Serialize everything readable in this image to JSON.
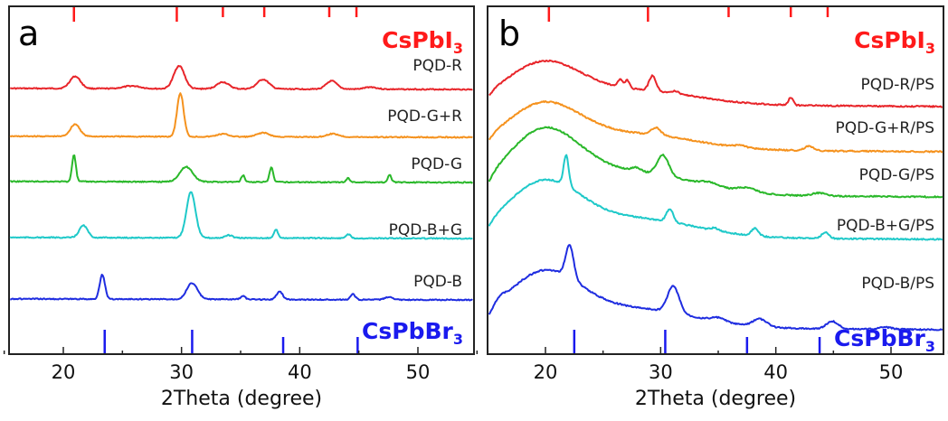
{
  "chart_data": [
    {
      "type": "line",
      "panel_label": "a",
      "xlabel": "2Theta (degree)",
      "ylabel": "",
      "xlim": [
        15,
        55
      ],
      "xticks": [
        20,
        30,
        40,
        50
      ],
      "y_ticks_shown": false,
      "grid": false,
      "reference_top": {
        "name": "CsPbI",
        "sub": "3",
        "color": "#ff1a1a",
        "peaks": [
          20.9,
          29.6,
          33.5,
          37.0,
          42.5,
          44.8
        ]
      },
      "reference_bottom": {
        "name": "CsPbBr",
        "sub": "3",
        "color": "#1a1aee",
        "peaks": [
          23.5,
          30.9,
          38.6,
          44.9
        ]
      },
      "series": [
        {
          "name": "PQD-R",
          "color": "#e8252a",
          "peaks": [
            [
              21.0,
              0.45,
              0.45
            ],
            [
              25.8,
              0.1,
              0.7
            ],
            [
              29.8,
              0.85,
              0.45
            ],
            [
              33.5,
              0.25,
              0.5
            ],
            [
              36.9,
              0.35,
              0.5
            ],
            [
              42.7,
              0.3,
              0.45
            ],
            [
              46.0,
              0.08,
              0.5
            ]
          ]
        },
        {
          "name": "PQD-G+R",
          "color": "#f5921e",
          "peaks": [
            [
              21.0,
              0.45,
              0.4
            ],
            [
              29.9,
              1.6,
              0.28
            ],
            [
              33.5,
              0.1,
              0.5
            ],
            [
              36.9,
              0.15,
              0.5
            ],
            [
              42.8,
              0.12,
              0.5
            ]
          ]
        },
        {
          "name": "PQD-G",
          "color": "#2ab82a",
          "peaks": [
            [
              20.9,
              1.0,
              0.16
            ],
            [
              30.4,
              0.55,
              0.55
            ],
            [
              35.2,
              0.25,
              0.15
            ],
            [
              37.6,
              0.55,
              0.15
            ],
            [
              44.1,
              0.15,
              0.15
            ],
            [
              47.6,
              0.28,
              0.15
            ]
          ]
        },
        {
          "name": "PQD-B+G",
          "color": "#1fc9c9",
          "peaks": [
            [
              21.7,
              0.45,
              0.35
            ],
            [
              30.8,
              1.7,
              0.38
            ],
            [
              34.0,
              0.1,
              0.3
            ],
            [
              38.0,
              0.3,
              0.18
            ],
            [
              44.1,
              0.15,
              0.2
            ]
          ]
        },
        {
          "name": "PQD-B",
          "color": "#1f2de0",
          "peaks": [
            [
              23.3,
              0.9,
              0.22
            ],
            [
              30.9,
              0.6,
              0.45
            ],
            [
              35.2,
              0.12,
              0.2
            ],
            [
              38.3,
              0.3,
              0.25
            ],
            [
              44.5,
              0.2,
              0.2
            ],
            [
              47.5,
              0.1,
              0.3
            ]
          ]
        }
      ]
    },
    {
      "type": "line",
      "panel_label": "b",
      "xlabel": "2Theta (degree)",
      "ylabel": "",
      "xlim": [
        15,
        55
      ],
      "xticks": [
        20,
        30,
        40,
        50
      ],
      "y_ticks_shown": false,
      "grid": false,
      "reference_top": {
        "name": "CsPbI",
        "sub": "3",
        "color": "#ff1a1a",
        "peaks": [
          20.3,
          28.9,
          35.9,
          41.3,
          44.5
        ]
      },
      "reference_bottom": {
        "name": "CsPbBr",
        "sub": "3",
        "color": "#1a1aee",
        "peaks": [
          22.5,
          30.4,
          37.5,
          43.8
        ]
      },
      "series": [
        {
          "name": "PQD-R/PS",
          "color": "#e8252a",
          "peaks": [
            [
              26.5,
              0.3,
              0.2
            ],
            [
              27.1,
              0.3,
              0.2
            ],
            [
              29.3,
              0.6,
              0.3
            ],
            [
              31.3,
              0.1,
              0.3
            ],
            [
              41.3,
              0.3,
              0.2
            ]
          ]
        },
        {
          "name": "PQD-G+R/PS",
          "color": "#f5921e",
          "peaks": [
            [
              29.6,
              0.3,
              0.4
            ],
            [
              36.9,
              0.08,
              0.5
            ],
            [
              42.9,
              0.18,
              0.4
            ]
          ]
        },
        {
          "name": "PQD-G/PS",
          "color": "#2ab82a",
          "peaks": [
            [
              27.9,
              0.15,
              0.4
            ],
            [
              30.2,
              0.8,
              0.5
            ],
            [
              34.3,
              0.15,
              0.8
            ],
            [
              37.5,
              0.18,
              0.8
            ],
            [
              43.8,
              0.12,
              0.6
            ]
          ]
        },
        {
          "name": "PQD-B+G/PS",
          "color": "#1fc9c9",
          "peaks": [
            [
              21.8,
              1.2,
              0.22
            ],
            [
              30.8,
              0.5,
              0.3
            ],
            [
              34.7,
              0.1,
              0.3
            ],
            [
              38.2,
              0.3,
              0.3
            ],
            [
              44.3,
              0.25,
              0.3
            ]
          ]
        },
        {
          "name": "PQD-B/PS",
          "color": "#1f2de0",
          "peaks": [
            [
              16.0,
              0.2,
              0.5
            ],
            [
              22.1,
              1.3,
              0.35
            ],
            [
              31.1,
              1.05,
              0.5
            ],
            [
              35.0,
              0.15,
              0.6
            ],
            [
              38.6,
              0.3,
              0.6
            ],
            [
              44.9,
              0.3,
              0.5
            ],
            [
              49.5,
              0.08,
              0.6
            ]
          ]
        }
      ]
    }
  ]
}
